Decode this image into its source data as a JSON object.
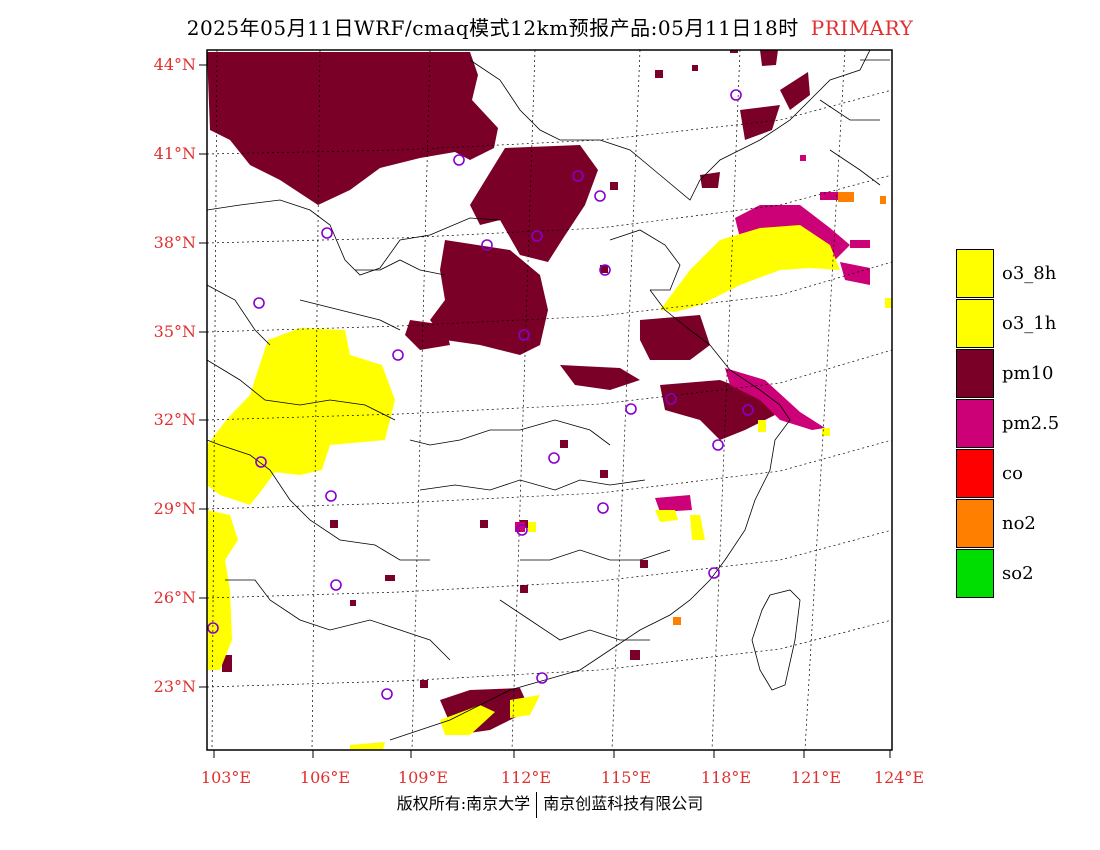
{
  "title": {
    "text": "2025年05月11日WRF/cmaq模式12km预报产品:05月11日18时",
    "tag": "PRIMARY"
  },
  "axes": {
    "lat_labels": [
      "44°N",
      "41°N",
      "38°N",
      "35°N",
      "32°N",
      "29°N",
      "26°N",
      "23°N"
    ],
    "lon_labels": [
      "103°E",
      "106°E",
      "109°E",
      "112°E",
      "115°E",
      "118°E",
      "121°E",
      "124°E"
    ]
  },
  "legend": {
    "items": [
      {
        "label": "o3_8h",
        "color": "#ffff00"
      },
      {
        "label": "o3_1h",
        "color": "#ffff00"
      },
      {
        "label": "pm10",
        "color": "#7a0028"
      },
      {
        "label": "pm2.5",
        "color": "#cc0077"
      },
      {
        "label": "co",
        "color": "#ff0000"
      },
      {
        "label": "no2",
        "color": "#ff8000"
      },
      {
        "label": "so2",
        "color": "#00dd00"
      }
    ]
  },
  "footer": {
    "left": "版权所有:南京大学",
    "right": "南京创蓝科技有限公司"
  }
}
